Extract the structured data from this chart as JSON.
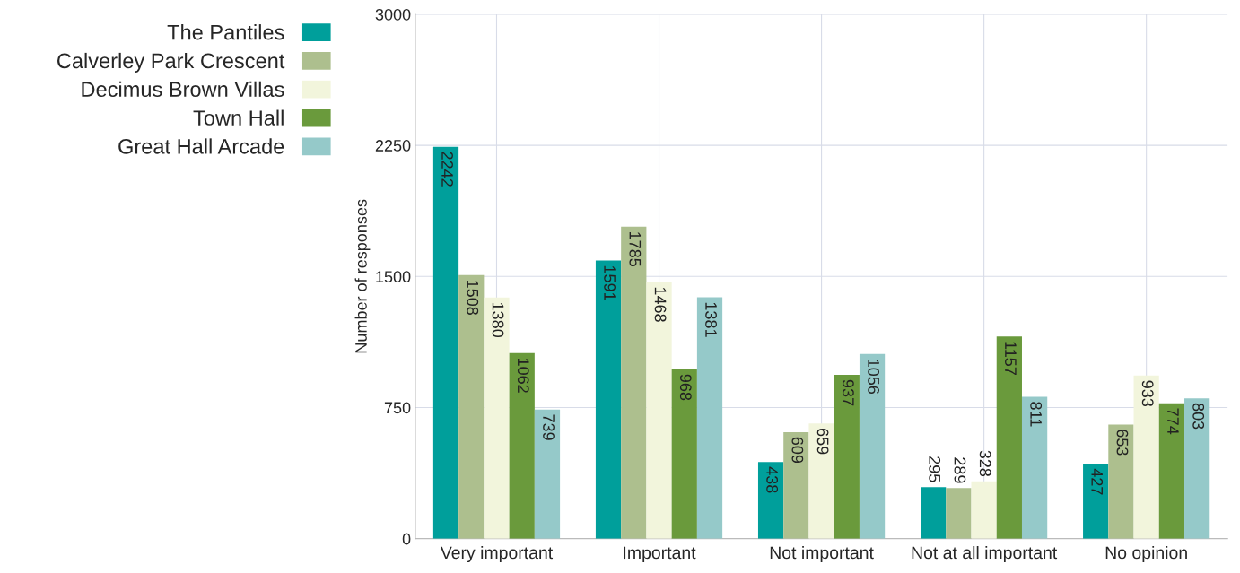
{
  "chart_data": {
    "type": "bar",
    "ylabel": "Number of responses",
    "categories": [
      "Very important",
      "Important",
      "Not important",
      "Not at all important",
      "No opinion"
    ],
    "series": [
      {
        "name": "The Pantiles",
        "color": "#009f9b",
        "values": [
          2242,
          1591,
          438,
          295,
          427
        ]
      },
      {
        "name": "Calverley Park Crescent",
        "color": "#adbf8e",
        "values": [
          1508,
          1785,
          609,
          289,
          653
        ]
      },
      {
        "name": "Decimus Brown Villas",
        "color": "#f2f5dc",
        "values": [
          1380,
          1468,
          659,
          328,
          933
        ]
      },
      {
        "name": "Town Hall",
        "color": "#6a9a3c",
        "values": [
          1062,
          968,
          937,
          1157,
          774
        ]
      },
      {
        "name": "Great Hall Arcade",
        "color": "#95c9c9",
        "values": [
          739,
          1381,
          1056,
          811,
          803
        ]
      }
    ],
    "ylim": [
      0,
      3000
    ],
    "yticks": [
      0,
      750,
      1500,
      2250,
      3000
    ],
    "grid": true,
    "legend": "top left",
    "data_labels": true
  }
}
